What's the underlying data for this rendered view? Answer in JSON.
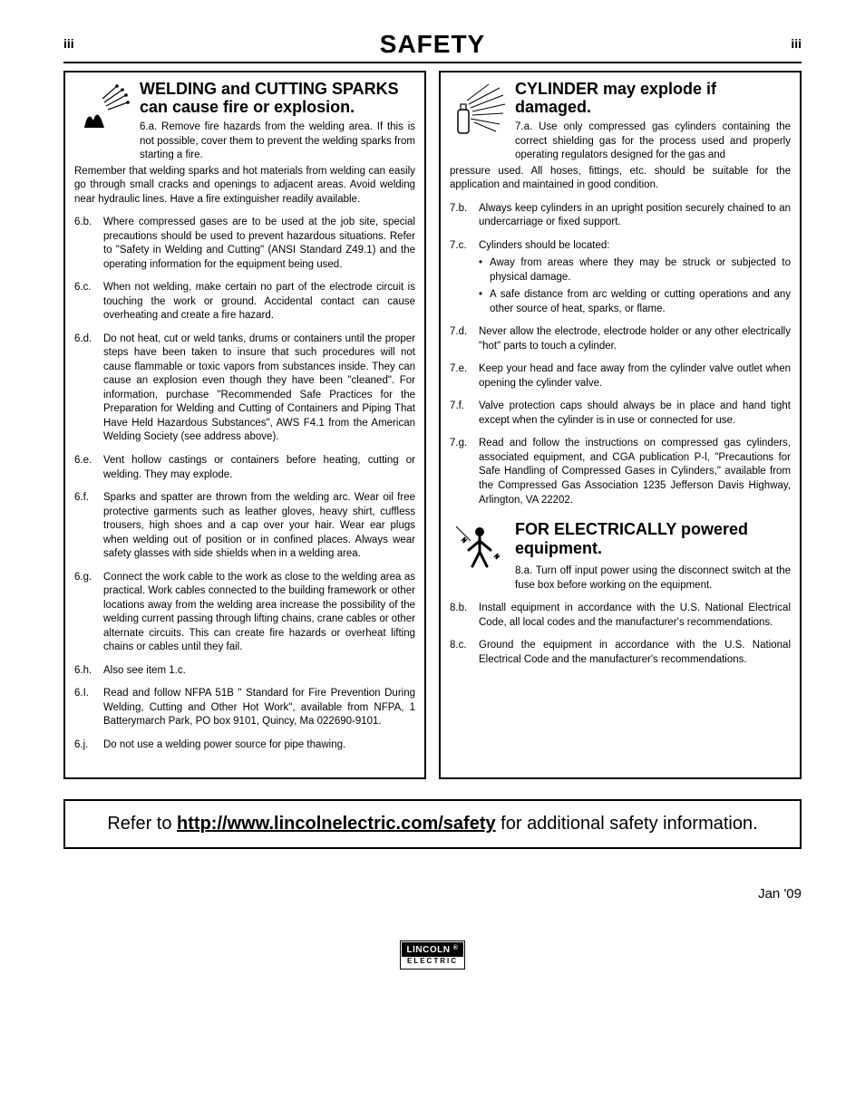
{
  "header": {
    "left": "iii",
    "title": "SAFETY",
    "right": "iii"
  },
  "left_col": {
    "sec1": {
      "title": "WELDING and CUTTING SPARKS can cause fire or explosion.",
      "first_num": "6.a.",
      "first_txt": "Remove fire hazards from the welding area. If this is not possible, cover them to prevent the welding sparks from starting a fire.",
      "cont": "Remember that welding sparks and hot materials from welding can easily go through small cracks and openings to adjacent areas. Avoid welding near hydraulic lines. Have a fire extinguisher readily available.",
      "items": [
        {
          "num": "6.b.",
          "txt": "Where compressed gases are to be used at the job site, special precautions should be used to prevent hazardous situations. Refer to \"Safety in Welding and Cutting\" (ANSI Standard Z49.1) and the operating information for the equipment being used."
        },
        {
          "num": "6.c.",
          "txt": "When not welding, make certain no part of the electrode circuit is touching the work or ground. Accidental contact can cause overheating and create a fire hazard."
        },
        {
          "num": "6.d.",
          "txt": "Do not heat, cut or weld tanks, drums or containers until the proper steps have been taken to insure that such procedures will not cause flammable or toxic vapors from substances inside. They can cause an explosion even though they have been \"cleaned\". For information, purchase \"Recommended Safe Practices for the Preparation for Welding and Cutting of Containers and Piping That Have Held Hazardous Substances\", AWS F4.1 from the American Welding Society (see address above)."
        },
        {
          "num": "6.e.",
          "txt": "Vent hollow castings or containers before heating, cutting or welding. They may explode."
        },
        {
          "num": "6.f.",
          "txt": "Sparks and spatter are thrown from the welding arc. Wear oil free protective garments such as leather gloves, heavy shirt, cuffless trousers, high shoes and a cap over your hair. Wear ear plugs when welding out of position or in confined places. Always wear safety glasses with side shields when in a welding area."
        },
        {
          "num": "6.g.",
          "txt": "Connect the work cable to the work as close to the welding area as practical. Work cables connected to the building framework or other locations away from the welding area increase the possibility of the welding current passing through lifting chains, crane cables or other alternate circuits. This can create fire hazards or overheat lifting chains or cables until they fail."
        },
        {
          "num": "6.h.",
          "txt": "Also see item 1.c."
        },
        {
          "num": "6.I.",
          "txt": "Read and follow NFPA 51B \" Standard for Fire Prevention During Welding, Cutting and Other Hot Work\", available from NFPA, 1 Batterymarch Park, PO box 9101, Quincy, Ma 022690-9101."
        },
        {
          "num": "6.j.",
          "txt": "Do not use a welding power source for pipe thawing."
        }
      ]
    }
  },
  "right_col": {
    "sec1": {
      "title": "CYLINDER may explode if damaged.",
      "first_num": "7.a.",
      "first_txt": "Use only compressed gas cylinders containing the correct shielding gas for the process used and properly operating regulators designed for the gas and",
      "cont": "pressure used. All hoses, fittings, etc. should be suitable for the application and maintained in good condition.",
      "items": [
        {
          "num": "7.b.",
          "txt": "Always keep cylinders in an upright position securely chained to an undercarriage or fixed support."
        },
        {
          "num": "7.c.",
          "txt": "Cylinders should be located:",
          "subs": [
            "Away from areas where they may be struck or subjected to physical damage.",
            "A safe distance from arc welding or cutting operations and any other source of heat, sparks, or flame."
          ]
        },
        {
          "num": "7.d.",
          "txt": "Never allow the electrode, electrode holder or any other electrically \"hot\" parts to touch a cylinder."
        },
        {
          "num": "7.e.",
          "txt": "Keep your head and face away from the cylinder valve outlet when opening the cylinder valve."
        },
        {
          "num": "7.f.",
          "txt": "Valve protection caps should always be in place and hand tight except when the cylinder is in use or connected for use."
        },
        {
          "num": "7.g.",
          "txt": "Read and follow the instructions on compressed gas cylinders, associated equipment, and CGA publication P-l, \"Precautions for Safe Handling of Compressed Gases in Cylinders,\" available from the Compressed Gas Association 1235 Jefferson Davis Highway, Arlington, VA 22202."
        }
      ]
    },
    "sec2": {
      "title": "FOR ELECTRICALLY powered equipment.",
      "first_num": "8.a.",
      "first_txt": "Turn off input power using the disconnect switch at the fuse box before working on the equipment.",
      "items": [
        {
          "num": "8.b.",
          "txt": "Install equipment in accordance with the U.S. National Electrical Code, all local codes and the manufacturer's recommendations."
        },
        {
          "num": "8.c.",
          "txt": "Ground the equipment in accordance with the U.S. National Electrical Code and the manufacturer's recommendations."
        }
      ]
    }
  },
  "refer": {
    "pre": "Refer to ",
    "link": "http://www.lincolnelectric.com/safety",
    "post": " for additional safety information."
  },
  "date": "Jan '09",
  "logo": {
    "top": "LINCOLN",
    "bot": "ELECTRIC"
  }
}
